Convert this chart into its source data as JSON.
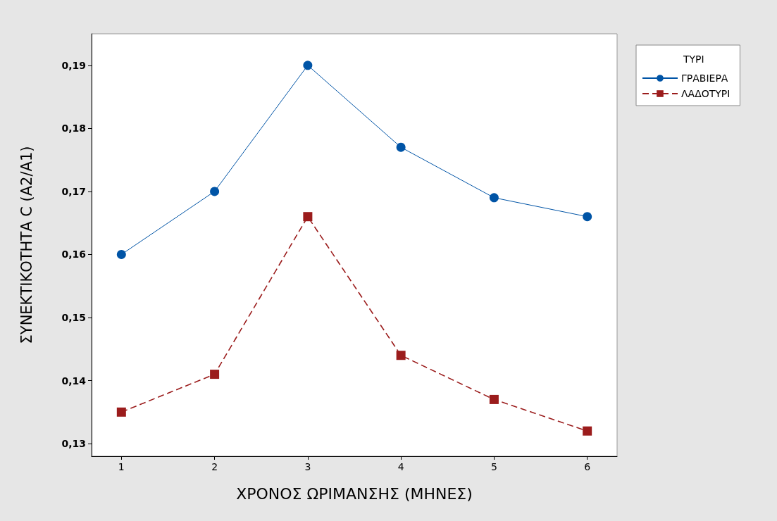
{
  "chart_data": {
    "type": "line",
    "xlabel": "ΧΡΟΝΟΣ ΩΡΙΜΑΝΣΗΣ (ΜΗΝΕΣ)",
    "ylabel": "ΣΥΝΕΚΤΙΚΟΤΗΤΑ C (A2/A1)",
    "legend_title": "ΤΥΡΙ",
    "x": [
      1,
      2,
      3,
      4,
      5,
      6
    ],
    "series": [
      {
        "name": "ΓΡΑΒΙΕΡΑ",
        "color": "#0054a6",
        "marker": "circle",
        "line_style": "solid",
        "values": [
          0.16,
          0.17,
          0.19,
          0.177,
          0.169,
          0.166
        ]
      },
      {
        "name": "ΛΑΔΟΤΥΡΙ",
        "color": "#9b1c1c",
        "marker": "square",
        "line_style": "dashed",
        "values": [
          0.135,
          0.141,
          0.166,
          0.144,
          0.137,
          0.132
        ]
      }
    ],
    "xlim": [
      0.68,
      6.32
    ],
    "xticks": [
      1,
      2,
      3,
      4,
      5,
      6
    ],
    "ylim": [
      0.128,
      0.195
    ],
    "yticks": [
      {
        "value": 0.13,
        "label": "0,13"
      },
      {
        "value": 0.14,
        "label": "0,14"
      },
      {
        "value": 0.15,
        "label": "0,15"
      },
      {
        "value": 0.16,
        "label": "0,16"
      },
      {
        "value": 0.17,
        "label": "0,17"
      },
      {
        "value": 0.18,
        "label": "0,18"
      },
      {
        "value": 0.19,
        "label": "0,19"
      }
    ],
    "grid": false,
    "legend": "top right"
  }
}
